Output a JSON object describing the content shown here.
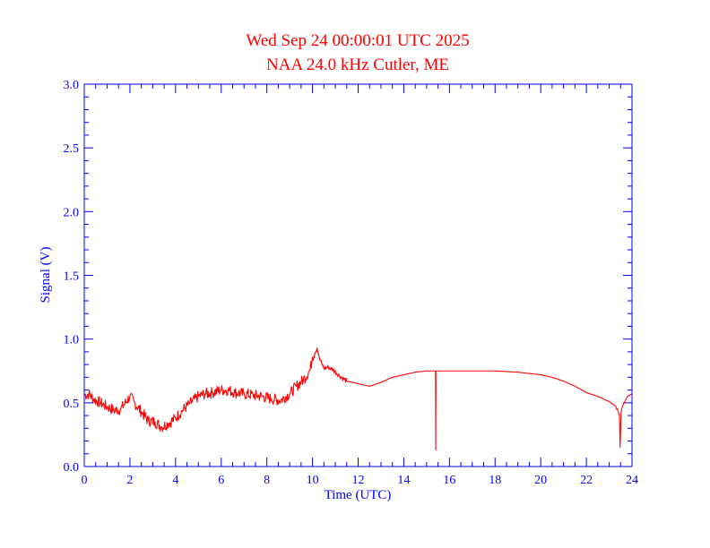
{
  "chart_data": {
    "type": "line",
    "title": "Wed Sep 24 00:00:01 UTC 2025",
    "subtitle": "NAA 24.0 kHz Cutler, ME",
    "xlabel": "Time (UTC)",
    "ylabel": "Signal (V)",
    "xlim": [
      0,
      24
    ],
    "ylim": [
      0,
      3.0
    ],
    "x_ticks": [
      "0",
      "2",
      "4",
      "6",
      "8",
      "10",
      "12",
      "14",
      "16",
      "18",
      "20",
      "22",
      "24"
    ],
    "y_ticks": [
      "0.0",
      "0.5",
      "1.0",
      "1.5",
      "2.0",
      "2.5",
      "3.0"
    ],
    "colors": {
      "axes": "#0000ff",
      "series": "#ff0000",
      "title": "#ff0000"
    },
    "series": [
      {
        "name": "NAA 24.0 kHz",
        "x": [
          0,
          0.2,
          0.4,
          0.7,
          1.0,
          1.3,
          1.6,
          2.0,
          2.2,
          2.5,
          2.8,
          3.1,
          3.4,
          3.7,
          4.0,
          4.3,
          4.6,
          5.0,
          5.3,
          5.6,
          6.0,
          6.3,
          6.6,
          7.0,
          7.4,
          7.8,
          8.2,
          8.6,
          9.0,
          9.3,
          9.6,
          9.9,
          10.0,
          10.2,
          10.3,
          10.5,
          10.7,
          10.9,
          11.2,
          11.5,
          12.0,
          12.5,
          13.0,
          13.5,
          14.0,
          14.5,
          15.0,
          15.39,
          15.4,
          15.41,
          15.5,
          16.0,
          17.0,
          18.0,
          19.0,
          20.0,
          20.5,
          21.0,
          21.5,
          22.0,
          22.5,
          23.0,
          23.3,
          23.45,
          23.48,
          23.52,
          23.6,
          23.8,
          24.0
        ],
        "values": [
          0.56,
          0.57,
          0.53,
          0.5,
          0.47,
          0.44,
          0.45,
          0.55,
          0.5,
          0.43,
          0.36,
          0.35,
          0.31,
          0.34,
          0.38,
          0.44,
          0.49,
          0.55,
          0.57,
          0.58,
          0.6,
          0.6,
          0.58,
          0.57,
          0.56,
          0.55,
          0.53,
          0.52,
          0.57,
          0.63,
          0.68,
          0.76,
          0.86,
          0.93,
          0.85,
          0.77,
          0.78,
          0.76,
          0.71,
          0.67,
          0.65,
          0.63,
          0.66,
          0.7,
          0.72,
          0.74,
          0.75,
          0.75,
          0.13,
          0.75,
          0.75,
          0.75,
          0.75,
          0.75,
          0.74,
          0.72,
          0.7,
          0.67,
          0.63,
          0.58,
          0.55,
          0.51,
          0.47,
          0.4,
          0.15,
          0.42,
          0.48,
          0.55,
          0.57
        ]
      }
    ]
  }
}
